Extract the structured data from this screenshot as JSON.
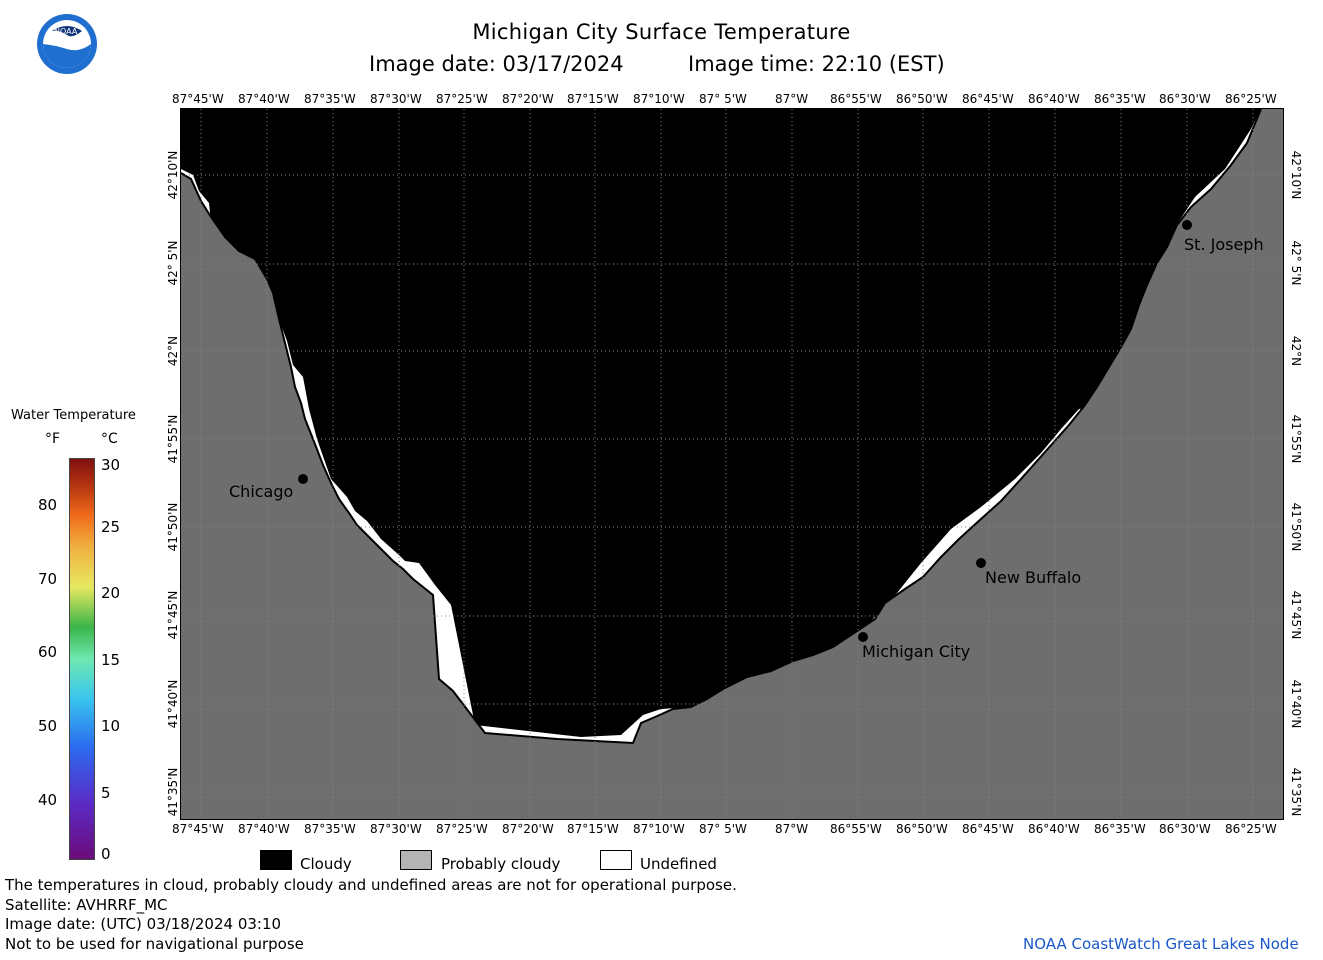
{
  "header": {
    "title": "Michigan City Surface Temperature",
    "subtitle_date": "Image date: 03/17/2024",
    "subtitle_time": "Image time: 22:10 (EST)"
  },
  "logo": {
    "text": "NOAA"
  },
  "map": {
    "lon_labels": [
      "87°45'W",
      "87°40'W",
      "87°35'W",
      "87°30'W",
      "87°25'W",
      "87°20'W",
      "87°15'W",
      "87°10'W",
      "87° 5'W",
      "87°W",
      "86°55'W",
      "86°50'W",
      "86°45'W",
      "86°40'W",
      "86°35'W",
      "86°30'W",
      "86°25'W"
    ],
    "lat_labels": [
      "42°10'N",
      "42° 5'N",
      "42°N",
      "41°55'N",
      "41°50'N",
      "41°45'N",
      "41°40'N",
      "41°35'N"
    ],
    "cities": [
      {
        "name": "Chicago"
      },
      {
        "name": "St. Joseph"
      },
      {
        "name": "New Buffalo"
      },
      {
        "name": "Michigan City"
      }
    ],
    "colors": {
      "cloudy": "#000000",
      "land": "#6e6e6e",
      "undefined": "#ffffff"
    }
  },
  "colorbar": {
    "title": "Water Temperature",
    "f_header": "°F",
    "c_header": "°C",
    "f_ticks": [
      "80",
      "70",
      "60",
      "50",
      "40"
    ],
    "c_ticks": [
      "30",
      "25",
      "20",
      "15",
      "10",
      "5",
      "0"
    ]
  },
  "legend": {
    "cloudy": "Cloudy",
    "probably_cloudy": "Probably cloudy",
    "undefined": "Undefined"
  },
  "footer": {
    "line1": "The temperatures in cloud, probably cloudy and undefined areas are not for operational purpose.",
    "line2": "Satellite: AVHRRF_MC",
    "line3": "Image date: (UTC) 03/18/2024  03:10",
    "line4": "Not to be used for navigational purpose",
    "credit": "NOAA CoastWatch Great Lakes Node"
  }
}
